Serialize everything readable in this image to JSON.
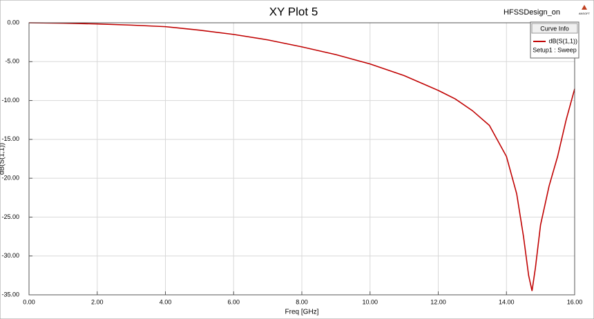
{
  "chart_data": {
    "type": "line",
    "title": "XY Plot 5",
    "design_name": "HFSSDesign_on",
    "logo": "ANSOFT",
    "x_label": "Freq [GHz]",
    "y_label": "dB(S(1,1))",
    "legend_title": "Curve Info",
    "legend_subtitle": "Setup1 : Sweep",
    "legend_position": "top-right",
    "grid": true,
    "x": [
      0,
      1,
      2,
      3,
      4,
      5,
      6,
      7,
      8,
      9,
      10,
      11,
      12,
      12.5,
      13,
      13.5,
      14,
      14.3,
      14.5,
      14.65,
      14.75,
      14.85,
      15,
      15.25,
      15.5,
      15.75,
      16
    ],
    "series": [
      {
        "name": "dB(S(1,1))",
        "color": "#c00000",
        "values": [
          0,
          -0.05,
          -0.15,
          -0.3,
          -0.5,
          -0.95,
          -1.5,
          -2.2,
          -3.1,
          -4.1,
          -5.3,
          -6.8,
          -8.7,
          -9.8,
          -11.3,
          -13.2,
          -17.2,
          -22,
          -27.5,
          -32.5,
          -34.5,
          -31.5,
          -26,
          -21,
          -17.2,
          -12.5,
          -8.5
        ]
      }
    ],
    "xlim": [
      0,
      16
    ],
    "ylim": [
      -35,
      0
    ],
    "xticks": [
      {
        "value": 0,
        "label": "0.00"
      },
      {
        "value": 2,
        "label": "2.00"
      },
      {
        "value": 4,
        "label": "4.00"
      },
      {
        "value": 6,
        "label": "6.00"
      },
      {
        "value": 8,
        "label": "8.00"
      },
      {
        "value": 10,
        "label": "10.00"
      },
      {
        "value": 12,
        "label": "12.00"
      },
      {
        "value": 14,
        "label": "14.00"
      },
      {
        "value": 16,
        "label": "16.00"
      }
    ],
    "yticks": [
      {
        "value": 0,
        "label": "0.00"
      },
      {
        "value": -5,
        "label": "-5.00"
      },
      {
        "value": -10,
        "label": "-10.00"
      },
      {
        "value": -15,
        "label": "-15.00"
      },
      {
        "value": -20,
        "label": "-20.00"
      },
      {
        "value": -25,
        "label": "-25.00"
      },
      {
        "value": -30,
        "label": "-30.00"
      },
      {
        "value": -35,
        "label": "-35.00"
      }
    ]
  }
}
